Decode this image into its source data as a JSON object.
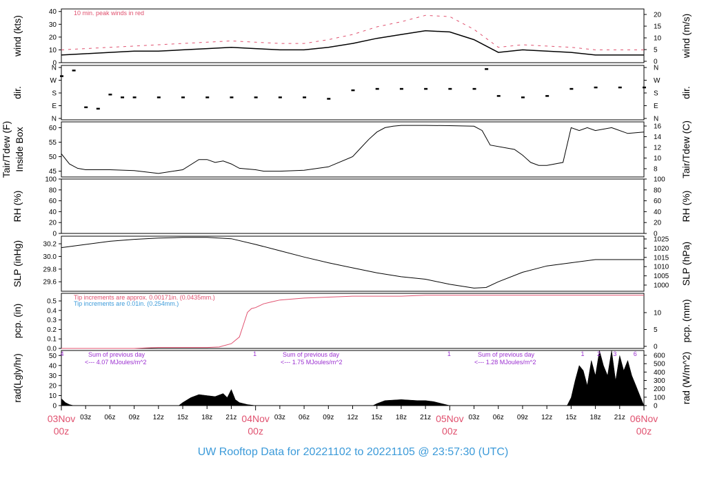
{
  "footer_title": "UW Rooftop Data for 20221102  to  20221105 @ 23:57:30  (UTC)",
  "colors": {
    "red": "#e0506e",
    "blue": "#3b9ad9",
    "purple": "#9b30d0",
    "black": "#000000"
  },
  "chart_data": [
    {
      "id": "wind",
      "type": "line",
      "ylabel": "wind (kts)",
      "ylabel_right": "wind (m/s)",
      "ylim": [
        0,
        42
      ],
      "yticks": [
        "0",
        "10",
        "20",
        "30",
        "40"
      ],
      "yticks_right": [
        "0",
        "5",
        "10",
        "15",
        "20"
      ],
      "annotation": "10 min. peak winds in red",
      "series": [
        {
          "color": "#000000",
          "x": [
            0,
            3,
            6,
            9,
            12,
            15,
            18,
            21,
            24,
            27,
            30,
            33,
            36,
            39,
            42,
            45,
            48,
            51,
            54,
            57,
            60,
            63,
            66,
            69,
            72
          ],
          "values": [
            6,
            7,
            8,
            9,
            9,
            10,
            11,
            12,
            11,
            10,
            10,
            12,
            15,
            19,
            22,
            25,
            24,
            18,
            8,
            10,
            9,
            8,
            6,
            6,
            6
          ]
        },
        {
          "color": "#e0506e",
          "x": [
            0,
            3,
            6,
            9,
            12,
            15,
            18,
            21,
            24,
            27,
            30,
            33,
            36,
            39,
            42,
            45,
            48,
            51,
            54,
            57,
            60,
            63,
            66,
            69,
            72
          ],
          "values": [
            10,
            11,
            12,
            13,
            14,
            15,
            16,
            17,
            16,
            15,
            15,
            18,
            22,
            28,
            32,
            37,
            36,
            26,
            12,
            14,
            13,
            12,
            10,
            10,
            10
          ]
        }
      ]
    },
    {
      "id": "dir",
      "type": "scatter",
      "ylabel": "dir.",
      "ylabel_right": "dir.",
      "yticks": [
        "N",
        "E",
        "S",
        "W",
        "N"
      ],
      "yticks_right": [
        "N",
        "E",
        "S",
        "W",
        "N"
      ],
      "x": [
        0,
        1.5,
        3,
        4.5,
        6,
        7.5,
        9,
        12,
        15,
        18,
        21,
        24,
        27,
        30,
        33,
        36,
        39,
        42,
        45,
        48,
        51,
        52.5,
        54,
        57,
        60,
        63,
        66,
        69,
        72
      ],
      "values": [
        300,
        340,
        80,
        70,
        170,
        150,
        150,
        150,
        150,
        150,
        150,
        150,
        150,
        150,
        140,
        200,
        210,
        210,
        210,
        210,
        210,
        350,
        160,
        150,
        160,
        210,
        220,
        220,
        220
      ]
    },
    {
      "id": "temp",
      "type": "line",
      "ylabel": "Tair/Tdew (F)",
      "ylabel2": "Inside Box",
      "ylabel_right": "Tair/Tdew (C)",
      "ylim": [
        43,
        62
      ],
      "yticks": [
        "45",
        "50",
        "55",
        "60"
      ],
      "yticks_right": [
        "8",
        "10",
        "12",
        "14",
        "16"
      ],
      "x": [
        0,
        1,
        2,
        3,
        6,
        9,
        12,
        15,
        17,
        18,
        19,
        20,
        21,
        22,
        24,
        25,
        27,
        30,
        33,
        36,
        37,
        38,
        39,
        40,
        41,
        42,
        43,
        45,
        48,
        51,
        52,
        53,
        56,
        57,
        58,
        59,
        60,
        62,
        63,
        64,
        65,
        66,
        68,
        70,
        72
      ],
      "values": [
        51,
        47.5,
        46,
        45.5,
        45.5,
        45.2,
        44.2,
        45.5,
        49,
        49,
        48,
        48.5,
        47.5,
        46,
        45.5,
        45,
        45,
        45.3,
        46.5,
        50,
        53,
        56,
        58.5,
        60,
        60.5,
        60.8,
        60.8,
        60.8,
        60.7,
        60.5,
        59,
        54,
        52.5,
        50.5,
        48,
        47,
        47,
        48,
        60,
        59,
        60,
        59,
        60,
        58,
        58.5
      ]
    },
    {
      "id": "rh",
      "type": "line",
      "ylabel": "RH (%)",
      "ylabel_right": "RH (%)",
      "ylim": [
        0,
        100
      ],
      "yticks": [
        "0",
        "20",
        "40",
        "60",
        "80",
        "100"
      ],
      "yticks_right": [
        "0",
        "20",
        "40",
        "60",
        "80",
        "100"
      ],
      "x": [],
      "values": []
    },
    {
      "id": "slp",
      "type": "line",
      "ylabel": "SLP (inHg)",
      "ylabel_right": "SLP (hPa)",
      "ylim": [
        29.45,
        30.32
      ],
      "yticks": [
        "29.6",
        "29.8",
        "30.0",
        "30.2"
      ],
      "yticks_right": [
        "1000",
        "1005",
        "1010",
        "1015",
        "1020",
        "1025"
      ],
      "x": [
        0,
        3,
        6,
        9,
        12,
        15,
        18,
        21,
        24,
        27,
        30,
        33,
        36,
        39,
        42,
        45,
        48,
        51,
        52.5,
        54,
        57,
        60,
        63,
        66,
        69,
        72
      ],
      "values": [
        30.14,
        30.19,
        30.24,
        30.27,
        30.29,
        30.3,
        30.3,
        30.28,
        30.19,
        30.09,
        29.99,
        29.9,
        29.82,
        29.74,
        29.68,
        29.64,
        29.56,
        29.5,
        29.51,
        29.6,
        29.75,
        29.85,
        29.9,
        29.95,
        29.95,
        29.95
      ]
    },
    {
      "id": "pcp",
      "type": "line",
      "ylabel": "pcp. (in)",
      "ylabel_right": "pcp. (mm)",
      "ylim": [
        0,
        0.58
      ],
      "yticks": [
        "0.0",
        "0.1",
        "0.2",
        "0.3",
        "0.4",
        "0.5"
      ],
      "yticks_right": [
        "0",
        "5",
        "10"
      ],
      "annotation_red": "Tip increments are approx. 0.00171in. (0.0435mm.)",
      "annotation_blue": "Tip increments are 0.01in. (0.254mm.)",
      "x": [
        0,
        9,
        10.5,
        12,
        15,
        18,
        19.5,
        21,
        22,
        22.5,
        23,
        23.5,
        24,
        24.5,
        25,
        26,
        27,
        30,
        33,
        36,
        39,
        42,
        45,
        48,
        54,
        60,
        66,
        72
      ],
      "values": [
        0,
        0,
        0.005,
        0.01,
        0.01,
        0.01,
        0.015,
        0.05,
        0.12,
        0.25,
        0.38,
        0.42,
        0.43,
        0.45,
        0.47,
        0.49,
        0.51,
        0.53,
        0.54,
        0.55,
        0.55,
        0.55,
        0.56,
        0.56,
        0.56,
        0.56,
        0.56,
        0.56
      ]
    },
    {
      "id": "rad",
      "type": "area",
      "ylabel": "rad(Lgly/hr)",
      "ylabel_right": "rad (W/m^2)",
      "ylim": [
        0,
        55
      ],
      "yticks": [
        "0",
        "10",
        "20",
        "30",
        "40",
        "50"
      ],
      "yticks_right": [
        "0",
        "100",
        "200",
        "300",
        "400",
        "500",
        "600"
      ],
      "sum_label": "Sum of previous day",
      "sums": [
        "<--- 4.07 MJoules/m^2",
        "<--- 1.75 MJoules/m^2",
        "<--- 1.28 MJoules/m^2"
      ],
      "marker_labels": [
        "4",
        "1",
        "1",
        "1",
        "2",
        "3",
        "6"
      ],
      "x": [
        0,
        0.5,
        1,
        1.5,
        14.5,
        15,
        16,
        17,
        18,
        19,
        20,
        20.5,
        21,
        21.5,
        22,
        23,
        24,
        38.5,
        39,
        40,
        42,
        44,
        45,
        46,
        47,
        48,
        62.5,
        63,
        63.5,
        64,
        64.5,
        65,
        65.5,
        66,
        66.5,
        67,
        67.5,
        68,
        68.5,
        69,
        69.5,
        70,
        70.5,
        71,
        71.5,
        72
      ],
      "values": [
        7,
        3,
        1,
        0,
        0,
        3,
        8,
        11,
        10,
        9,
        12,
        8,
        16,
        6,
        3,
        1,
        0,
        0,
        2,
        5,
        6,
        5,
        5,
        4,
        2,
        0,
        0,
        8,
        25,
        40,
        35,
        20,
        45,
        30,
        55,
        40,
        30,
        55,
        25,
        50,
        35,
        45,
        30,
        20,
        10,
        0
      ]
    }
  ],
  "time_axis": {
    "hour_ticks": [
      "03z",
      "06z",
      "09z",
      "12z",
      "15z",
      "18z",
      "21z",
      "03z",
      "06z",
      "09z",
      "12z",
      "15z",
      "18z",
      "21z",
      "03z",
      "06z",
      "09z",
      "12z",
      "15z",
      "18z",
      "21z"
    ],
    "day_labels": [
      {
        "date": "03Nov",
        "time": "00z"
      },
      {
        "date": "04Nov",
        "time": "00z"
      },
      {
        "date": "05Nov",
        "time": "00z"
      },
      {
        "date": "06Nov",
        "time": "00z"
      }
    ]
  }
}
